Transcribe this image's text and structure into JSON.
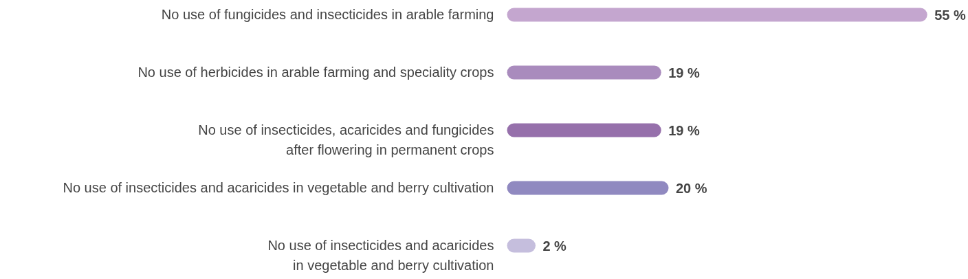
{
  "chart_data": {
    "type": "bar",
    "orientation": "horizontal",
    "value_labels": [
      "55 %",
      "19 %",
      "19 %",
      "20 %",
      "2 %"
    ],
    "categories": [
      "No use of fungicides and insecticides in arable farming",
      "No use of herbicides in arable farming and speciality crops",
      "No use of insecticides, acaricides and fungicides\nafter flowering in permanent crops",
      "No use of insecticides and acaricides in vegetable and berry cultivation",
      "No use of insecticides and acaricides\nin vegetable and berry cultivation"
    ],
    "values": [
      55,
      19,
      19,
      20,
      2
    ],
    "colors": [
      "#c4a6cf",
      "#a98bbd",
      "#9670ab",
      "#9089c0",
      "#c5bedd"
    ]
  }
}
